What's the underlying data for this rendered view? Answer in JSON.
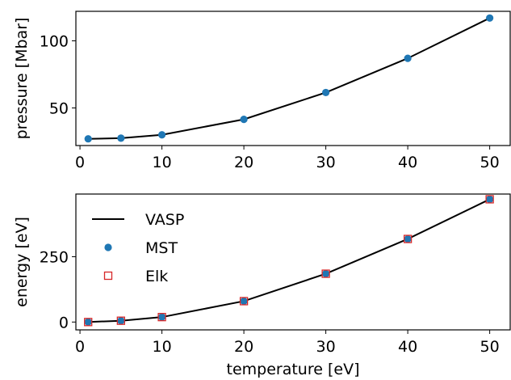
{
  "chart_data": [
    {
      "type": "line",
      "xlabel": "",
      "ylabel": "pressure [Mbar]",
      "xlim": [
        -0.5,
        52.5
      ],
      "ylim": [
        22,
        122
      ],
      "xticks": [
        0,
        10,
        20,
        30,
        40,
        50
      ],
      "yticks": [
        50,
        100
      ],
      "series": [
        {
          "kind": "line",
          "color": "#000000",
          "x": [
            1,
            5,
            10,
            20,
            30,
            40,
            50
          ],
          "y": [
            27,
            27.5,
            30,
            41.5,
            61.5,
            87,
            117
          ]
        },
        {
          "kind": "scatter",
          "marker": "circle",
          "color": "#1f77b4",
          "x": [
            1,
            5,
            10,
            20,
            30,
            40,
            50
          ],
          "y": [
            27,
            27.5,
            30,
            41.5,
            61.5,
            87,
            117
          ]
        }
      ]
    },
    {
      "type": "line",
      "xlabel": "temperature [eV]",
      "ylabel": "energy [eV]",
      "xlim": [
        -0.5,
        52.5
      ],
      "ylim": [
        -30,
        490
      ],
      "xticks": [
        0,
        10,
        20,
        30,
        40,
        50
      ],
      "yticks": [
        0,
        250
      ],
      "legend_position": "upper-left",
      "series": [
        {
          "name": "VASP",
          "kind": "line",
          "color": "#000000",
          "x": [
            1,
            5,
            10,
            20,
            30,
            40,
            50
          ],
          "y": [
            0,
            5,
            19,
            80,
            185,
            318,
            470
          ]
        },
        {
          "name": "MST",
          "kind": "scatter",
          "marker": "circle",
          "color": "#1f77b4",
          "x": [
            1,
            5,
            10,
            20,
            30,
            40,
            50
          ],
          "y": [
            0,
            5,
            19,
            80,
            185,
            318,
            470
          ]
        },
        {
          "name": "Elk",
          "kind": "scatter",
          "marker": "square-open",
          "color": "#d62728",
          "x": [
            1,
            5,
            10,
            20,
            30,
            40,
            50
          ],
          "y": [
            0,
            5,
            19,
            80,
            185,
            318,
            470
          ]
        }
      ]
    }
  ]
}
